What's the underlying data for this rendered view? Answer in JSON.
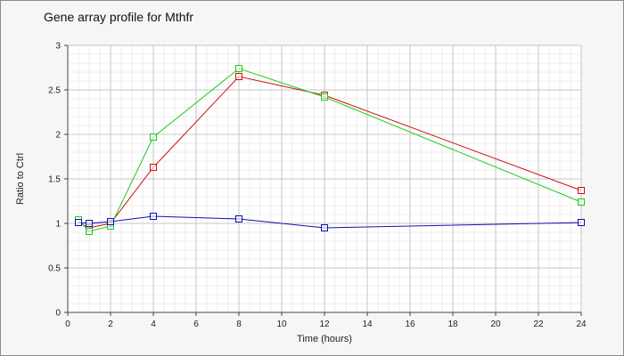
{
  "chart_data": {
    "type": "line",
    "title": "Gene array profile for Mthfr",
    "xlabel": "Time (hours)",
    "ylabel": "Ratio to Ctrl",
    "xlim": [
      0,
      24
    ],
    "ylim": [
      0,
      3
    ],
    "x_ticks": [
      "0",
      "2",
      "4",
      "6",
      "8",
      "10",
      "12",
      "14",
      "16",
      "18",
      "20",
      "22",
      "24"
    ],
    "y_ticks": [
      "0",
      "0.5",
      "1",
      "1.5",
      "2",
      "2.5",
      "3"
    ],
    "grid": true,
    "series": [
      {
        "color": "#d01010",
        "x": [
          0.5,
          1,
          2,
          4,
          8,
          12,
          24
        ],
        "y": [
          1.01,
          0.95,
          1.0,
          1.63,
          2.65,
          2.44,
          1.37
        ]
      },
      {
        "color": "#1ccc1c",
        "x": [
          0.5,
          1,
          2,
          4,
          8,
          12,
          24
        ],
        "y": [
          1.04,
          0.91,
          0.97,
          1.97,
          2.74,
          2.42,
          1.24
        ]
      },
      {
        "color": "#1010b0",
        "x": [
          0.5,
          1,
          2,
          4,
          8,
          12,
          24
        ],
        "y": [
          1.01,
          1.0,
          1.02,
          1.08,
          1.05,
          0.95,
          1.01
        ]
      }
    ]
  }
}
